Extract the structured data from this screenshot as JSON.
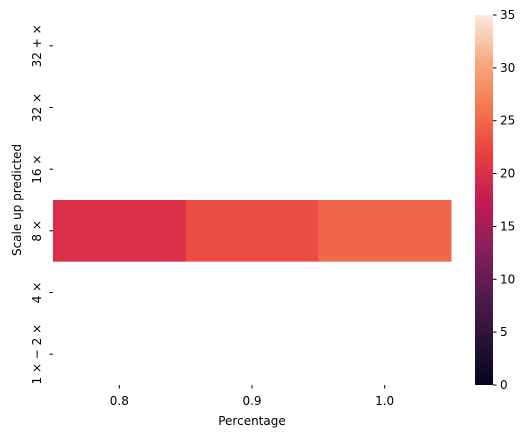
{
  "chart_data": {
    "type": "heatmap",
    "title": "",
    "xlabel": "Percentage",
    "ylabel": "Scale up predicted",
    "x_categories": [
      "0.8",
      "0.9",
      "1.0"
    ],
    "y_categories": [
      "32 + ×",
      "32 ×",
      "16 ×",
      "8 ×",
      "4 ×",
      "1 × − 2 ×"
    ],
    "cells": [
      {
        "x": "0.8",
        "y": "8 ×",
        "value": 20
      },
      {
        "x": "0.9",
        "y": "8 ×",
        "value": 23
      },
      {
        "x": "1.0",
        "y": "8 ×",
        "value": 25
      }
    ],
    "colorbar": {
      "min": 0,
      "max": 35,
      "ticks": [
        0,
        5,
        10,
        15,
        20,
        25,
        30,
        35
      ],
      "colormap": "rocket"
    },
    "grid": false
  }
}
